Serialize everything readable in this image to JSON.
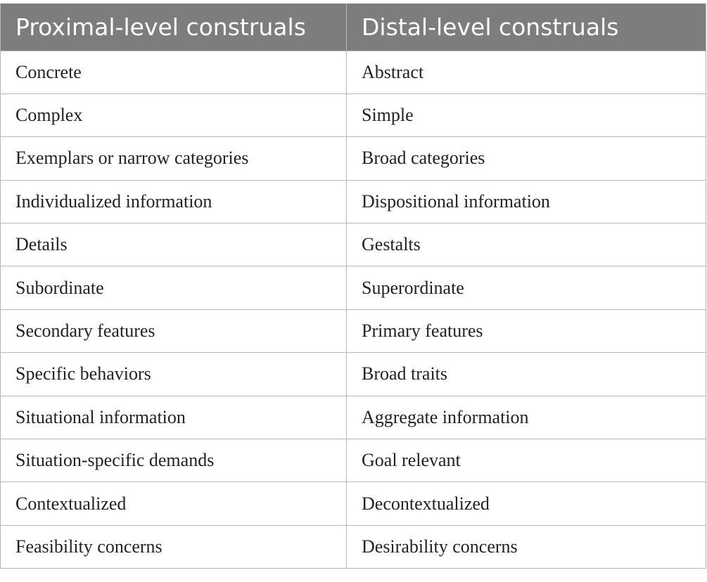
{
  "table": {
    "headers": [
      "Proximal-level construals",
      "Distal-level construals"
    ],
    "rows": [
      [
        "Concrete",
        "Abstract"
      ],
      [
        "Complex",
        "Simple"
      ],
      [
        "Exemplars or narrow categories",
        "Broad categories"
      ],
      [
        "Individualized information",
        "Dispositional information"
      ],
      [
        "Details",
        "Gestalts"
      ],
      [
        "Subordinate",
        "Superordinate"
      ],
      [
        "Secondary features",
        "Primary features"
      ],
      [
        "Specific behaviors",
        "Broad traits"
      ],
      [
        "Situational information",
        "Aggregate information"
      ],
      [
        "Situation-specific demands",
        "Goal relevant"
      ],
      [
        "Contextualized",
        "Decontextualized"
      ],
      [
        "Feasibility concerns",
        "Desirability concerns"
      ]
    ]
  },
  "colors": {
    "header_background": "#7d7d7d",
    "header_text": "#ffffff",
    "grid_lines": "#b8b8b8",
    "body_text": "#222222"
  }
}
